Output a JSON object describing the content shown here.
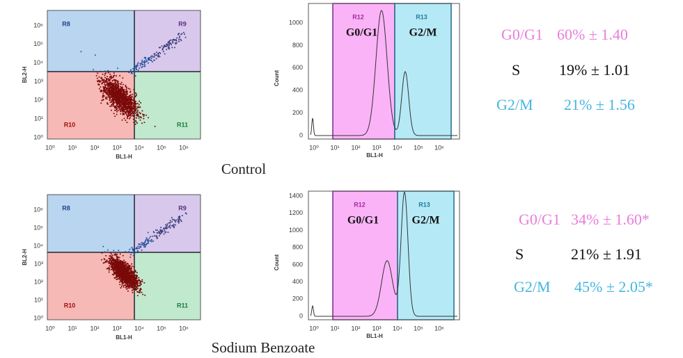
{
  "panels": [
    {
      "caption": "Control",
      "scatter": {
        "x_label": "BL1-H",
        "y_label": "BL2-H",
        "x_ticks": [
          "10⁰",
          "10¹",
          "10²",
          "10³",
          "10⁴",
          "10⁵",
          "10⁶"
        ],
        "y_ticks": [
          "10⁰",
          "10¹",
          "10²",
          "10³",
          "10⁴",
          "10⁵",
          "10⁶"
        ],
        "regions": [
          "R8",
          "R9",
          "R10",
          "R11"
        ]
      },
      "histogram": {
        "x_label": "BL1-H",
        "y_label": "Count",
        "x_ticks": [
          "10⁰",
          "10¹",
          "10²",
          "10³",
          "10⁴",
          "10⁵",
          "10⁶"
        ],
        "y_ticks": [
          "0",
          "200",
          "400",
          "600",
          "800",
          "1000"
        ],
        "regions": [
          {
            "name": "R12",
            "phase": "G0/G1"
          },
          {
            "name": "R13",
            "phase": "G2/M"
          }
        ]
      },
      "stats": [
        {
          "phase": "G0/G1",
          "value": "60% ± 1.40"
        },
        {
          "phase": "S",
          "value": "19% ± 1.01"
        },
        {
          "phase": "G2/M",
          "value": "21% ± 1.56"
        }
      ]
    },
    {
      "caption": "Sodium Benzoate",
      "scatter": {
        "x_label": "BL1-H",
        "y_label": "BL2-H",
        "x_ticks": [
          "10⁰",
          "10¹",
          "10²",
          "10³",
          "10⁴",
          "10⁵",
          "10⁶"
        ],
        "y_ticks": [
          "10⁰",
          "10¹",
          "10²",
          "10³",
          "10⁴",
          "10⁵",
          "10⁶"
        ],
        "regions": [
          "R8",
          "R9",
          "R10",
          "R11"
        ]
      },
      "histogram": {
        "x_label": "BL1-H",
        "y_label": "Count",
        "x_ticks": [
          "10⁰",
          "10¹",
          "10²",
          "10³",
          "10⁴",
          "10⁵",
          "10⁶"
        ],
        "y_ticks": [
          "0",
          "200",
          "400",
          "600",
          "800",
          "1000",
          "1200",
          "1400"
        ],
        "regions": [
          {
            "name": "R12",
            "phase": "G0/G1"
          },
          {
            "name": "R13",
            "phase": "G2/M"
          }
        ]
      },
      "stats": [
        {
          "phase": "G0/G1",
          "value": "34% ± 1.60*"
        },
        {
          "phase": "S",
          "value": "21% ± 1.91"
        },
        {
          "phase": "G2/M",
          "value": "45% ± 2.05*"
        }
      ]
    }
  ]
}
